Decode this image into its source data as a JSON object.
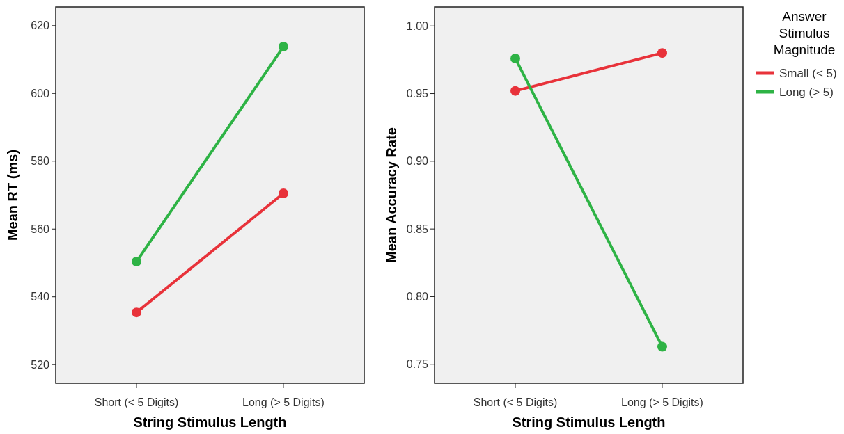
{
  "chart_data": [
    {
      "type": "line",
      "xlabel": "String Stimulus Length",
      "ylabel": "Mean RT (ms)",
      "categories": [
        "Short (< 5 Digits)",
        "Long (> 5 Digits)"
      ],
      "ylim": [
        514.5,
        625.5
      ],
      "yticks": [
        520,
        540,
        560,
        580,
        600,
        620
      ],
      "marker": "circle",
      "grid": false,
      "legend": false,
      "series": [
        {
          "color": "#e8323a",
          "values": [
            535.4,
            570.5
          ]
        },
        {
          "color": "#2eb345",
          "values": [
            550.4,
            613.8
          ]
        }
      ]
    },
    {
      "type": "line",
      "xlabel": "String Stimulus Length",
      "ylabel": "Mean Accuracy Rate",
      "legend_title": "Answer Stimulus Magnitude",
      "categories": [
        "Short (< 5 Digits)",
        "Long (> 5 Digits)"
      ],
      "ylim": [
        0.736,
        1.014
      ],
      "yticks": [
        {
          "value": 0.75,
          "label": "0.75"
        },
        {
          "value": 0.8,
          "label": "0.80"
        },
        {
          "value": 0.85,
          "label": "0.85"
        },
        {
          "value": 0.9,
          "label": "0.90"
        },
        {
          "value": 0.95,
          "label": "0.95"
        },
        {
          "value": 1,
          "label": "1.00"
        }
      ],
      "marker": "circle",
      "grid": false,
      "legend": "right",
      "series": [
        {
          "name": "Small (< 5)",
          "color": "#e8323a",
          "values": [
            0.952,
            0.98
          ]
        },
        {
          "name": "Long (> 5)",
          "color": "#2eb345",
          "values": [
            0.976,
            0.763
          ]
        }
      ]
    }
  ]
}
